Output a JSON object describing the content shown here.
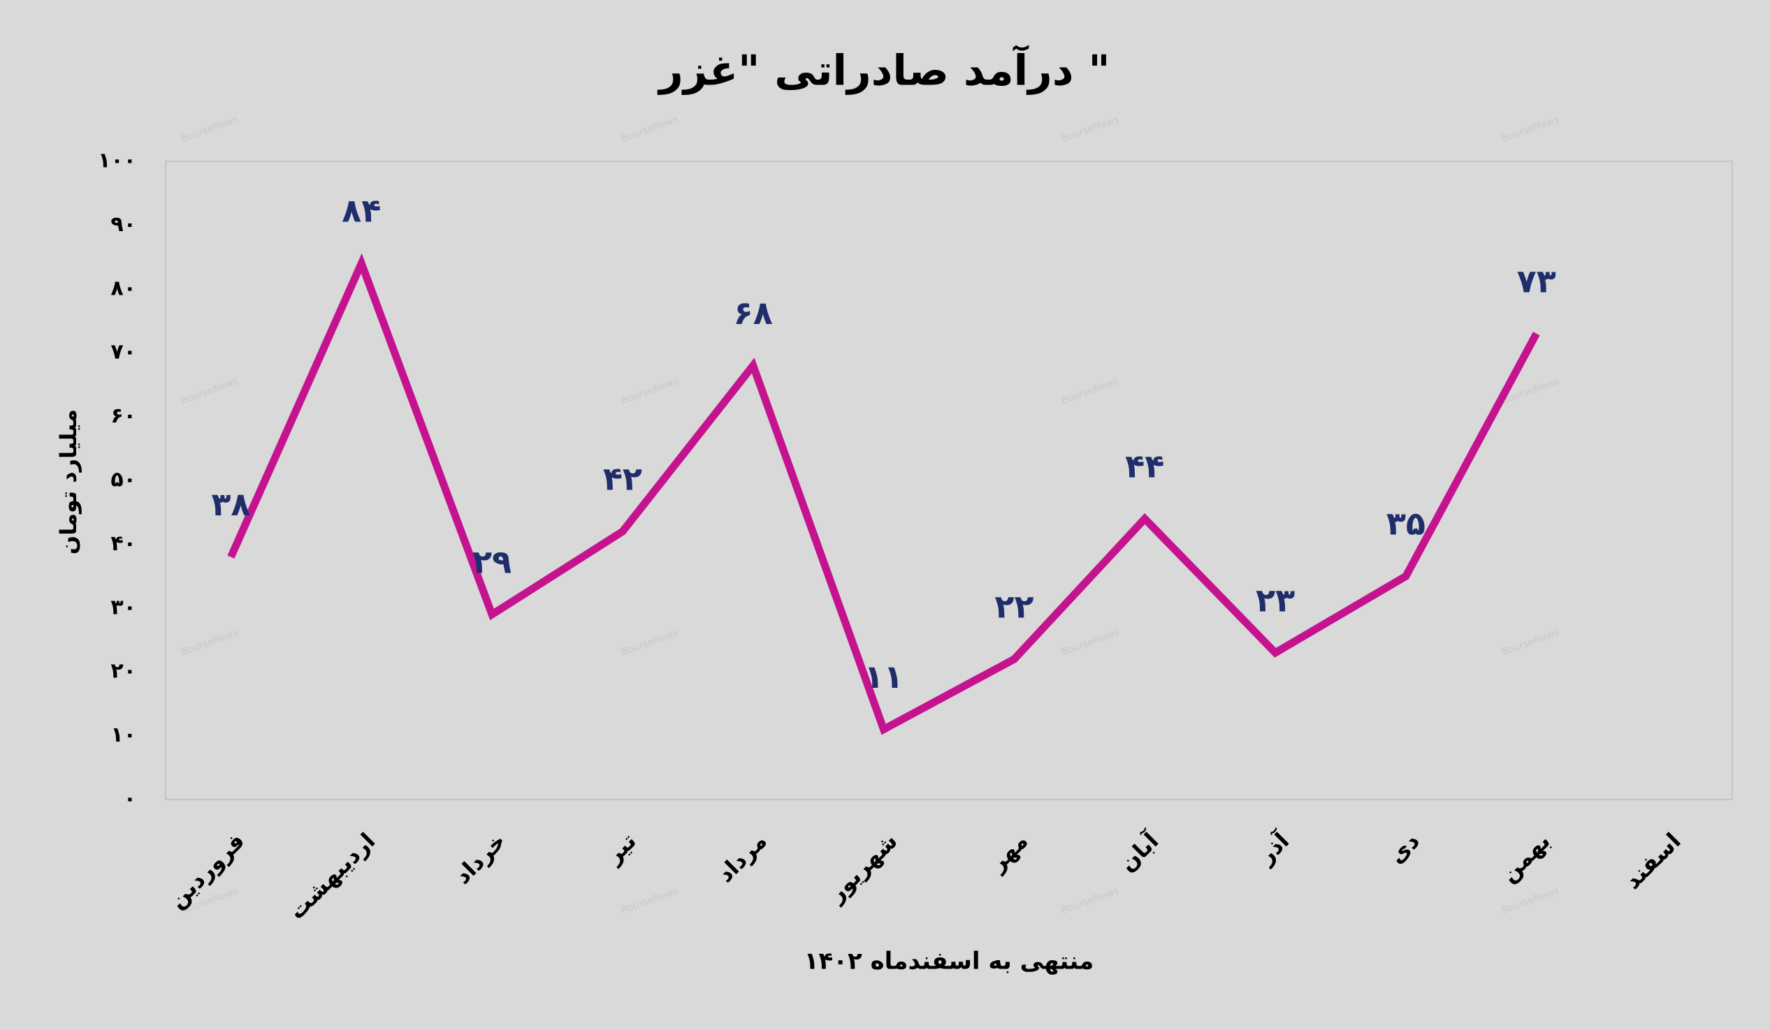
{
  "chart_data": {
    "type": "line",
    "title": "درآمد صادراتی \"غزر \"",
    "y_label": "میلیارد تومان",
    "x_label": "منتهی به اسفندماه ۱۴۰۲",
    "watermark": "BourseNews",
    "categories": [
      "فروردین",
      "اردیبهشت",
      "خرداد",
      "تیر",
      "مرداد",
      "شهریور",
      "مهر",
      "آبان",
      "آذر",
      "دی",
      "بهمن",
      "اسفند"
    ],
    "series": [
      {
        "color": "#c5138f",
        "values": [
          38,
          84,
          29,
          42,
          68,
          11,
          22,
          44,
          23,
          35,
          73,
          null
        ],
        "value_labels": [
          "۳۸",
          "۸۴",
          "۲۹",
          "۴۲",
          "۶۸",
          "۱۱",
          "۲۲",
          "۴۴",
          "۲۳",
          "۳۵",
          "۷۳",
          null
        ]
      }
    ],
    "label_color": "#1f2d6b",
    "ylim": [
      0,
      100
    ],
    "yticks": [
      {
        "value": 0,
        "label": "۰"
      },
      {
        "value": 10,
        "label": "۱۰"
      },
      {
        "value": 20,
        "label": "۲۰"
      },
      {
        "value": 30,
        "label": "۳۰"
      },
      {
        "value": 40,
        "label": "۴۰"
      },
      {
        "value": 50,
        "label": "۵۰"
      },
      {
        "value": 60,
        "label": "۶۰"
      },
      {
        "value": 70,
        "label": "۷۰"
      },
      {
        "value": 80,
        "label": "۸۰"
      },
      {
        "value": 90,
        "label": "۹۰"
      },
      {
        "value": 100,
        "label": "۱۰۰"
      }
    ],
    "grid": false
  }
}
